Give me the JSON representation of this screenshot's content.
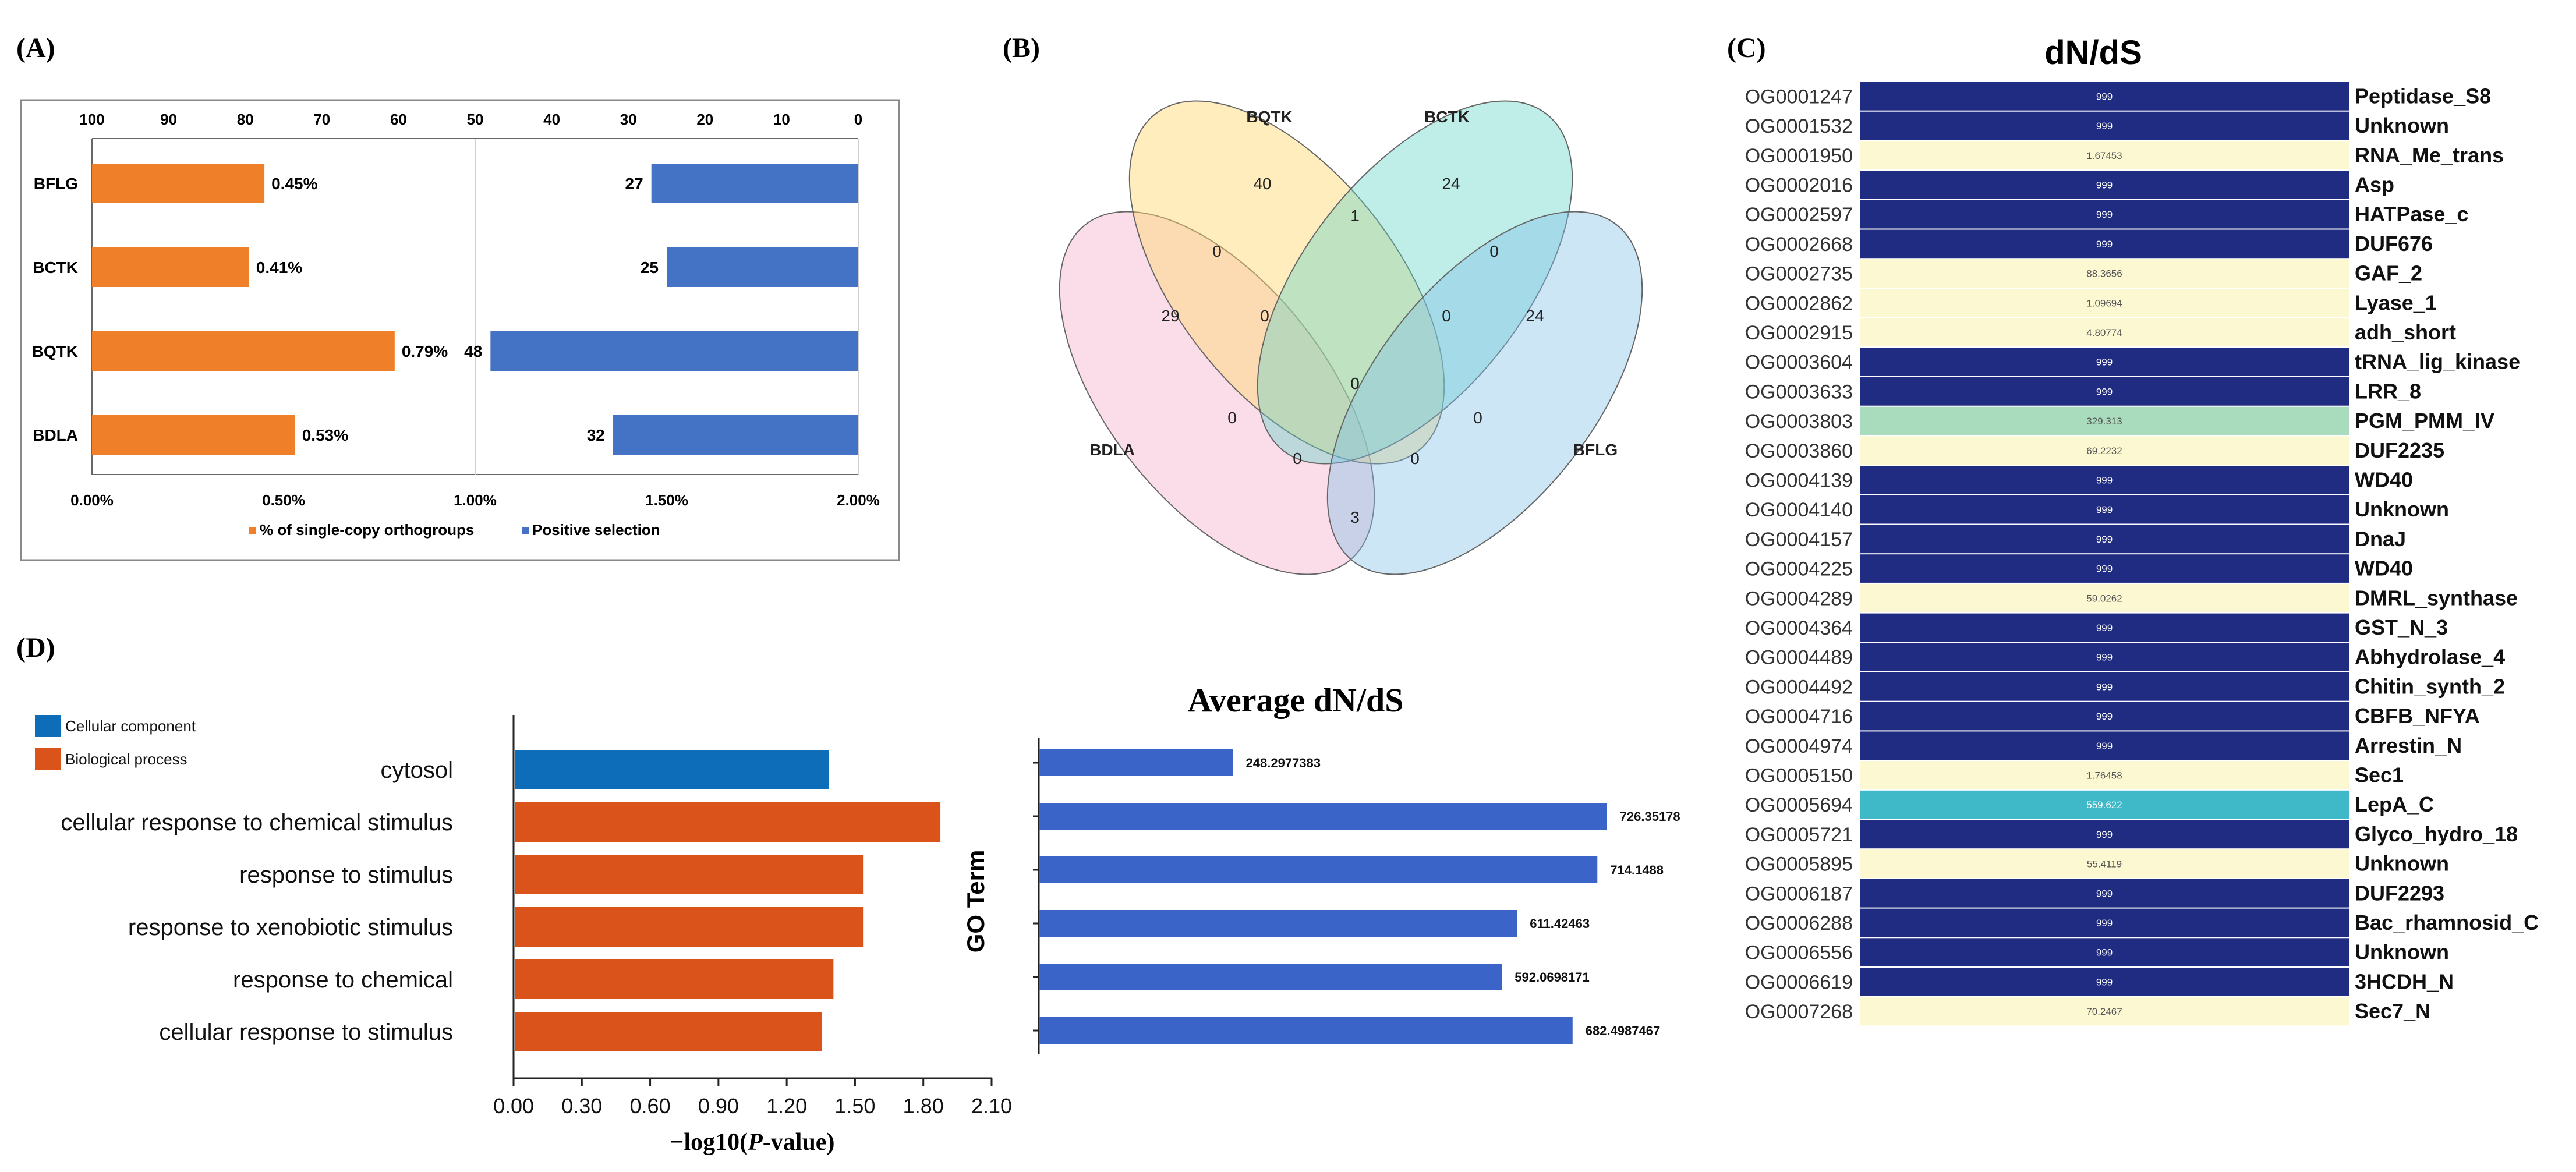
{
  "panels": {
    "a": "(A)",
    "b": "(B)",
    "c": "(C)",
    "d": "(D)"
  },
  "colors": {
    "orange": "#F07F2A",
    "blue": "#4472C4",
    "go_blue": "#0E6DB8",
    "go_orange": "#D9531B",
    "avg_bar": "#3B64C8",
    "hm_navy": "#1F2C82",
    "hm_cream": "#FBF8D2",
    "hm_green": "#A9DCBC",
    "hm_teal": "#3FB8C8"
  },
  "chart_data": [
    {
      "id": "A",
      "type": "bar",
      "orientation": "horizontal",
      "categories": [
        "BFLG",
        "BCTK",
        "BQTK",
        "BDLA"
      ],
      "series": [
        {
          "name": "% of single-copy orthogroups",
          "values": [
            0.45,
            0.41,
            0.79,
            0.53
          ],
          "labels": [
            "0.45%",
            "0.41%",
            "0.79%",
            "0.53%"
          ],
          "axis": "bottom"
        },
        {
          "name": "Positive selection",
          "values": [
            27,
            25,
            48,
            32
          ],
          "labels": [
            "27",
            "25",
            "48",
            "32"
          ],
          "axis": "top_reversed"
        }
      ],
      "bottom_axis": {
        "range": [
          0,
          2
        ],
        "ticks": [
          "0.00%",
          "0.50%",
          "1.00%",
          "1.50%",
          "2.00%"
        ]
      },
      "top_axis": {
        "range": [
          100,
          0
        ],
        "ticks": [
          "100",
          "90",
          "80",
          "70",
          "60",
          "50",
          "40",
          "30",
          "20",
          "10",
          "0"
        ]
      },
      "legend_position": "bottom"
    },
    {
      "id": "B",
      "type": "venn",
      "sets": [
        "BQTK",
        "BCTK",
        "BDLA",
        "BFLG"
      ],
      "region_counts": [
        {
          "sets": [
            "BQTK"
          ],
          "value": "40"
        },
        {
          "sets": [
            "BCTK"
          ],
          "value": "24"
        },
        {
          "sets": [
            "BDLA"
          ],
          "value": "29"
        },
        {
          "sets": [
            "BFLG"
          ],
          "value": "24"
        },
        {
          "sets": [
            "BQTK",
            "BCTK"
          ],
          "value": "1"
        },
        {
          "sets": [
            "BQTK",
            "BDLA"
          ],
          "value": "0"
        },
        {
          "sets": [
            "BCTK",
            "BFLG"
          ],
          "value": "0"
        },
        {
          "sets": [
            "BQTK",
            "BCTK",
            "BDLA"
          ],
          "value": "0"
        },
        {
          "sets": [
            "BQTK",
            "BCTK",
            "BFLG"
          ],
          "value": "0"
        },
        {
          "sets": [
            "BQTK",
            "BCTK",
            "BDLA",
            "BFLG"
          ],
          "value": "0"
        },
        {
          "sets": [
            "BDLA",
            "BCTK"
          ],
          "value": "0"
        },
        {
          "sets": [
            "BQTK",
            "BFLG"
          ],
          "value": "0"
        },
        {
          "sets": [
            "BDLA",
            "BCTK",
            "BFLG"
          ],
          "value": "0"
        },
        {
          "sets": [
            "BDLA",
            "BQTK",
            "BFLG"
          ],
          "value": "0"
        },
        {
          "sets": [
            "BDLA",
            "BFLG"
          ],
          "value": "3"
        }
      ]
    },
    {
      "id": "C",
      "type": "heatmap",
      "title": "dN/dS",
      "rows": [
        {
          "og": "OG0001247",
          "value": "999",
          "family": "Peptidase_S8",
          "level": "navy"
        },
        {
          "og": "OG0001532",
          "value": "999",
          "family": "Unknown",
          "level": "navy"
        },
        {
          "og": "OG0001950",
          "value": "1.67453",
          "family": "RNA_Me_trans",
          "level": "cream"
        },
        {
          "og": "OG0002016",
          "value": "999",
          "family": "Asp",
          "level": "navy"
        },
        {
          "og": "OG0002597",
          "value": "999",
          "family": "HATPase_c",
          "level": "navy"
        },
        {
          "og": "OG0002668",
          "value": "999",
          "family": "DUF676",
          "level": "navy"
        },
        {
          "og": "OG0002735",
          "value": "88.3656",
          "family": "GAF_2",
          "level": "cream"
        },
        {
          "og": "OG0002862",
          "value": "1.09694",
          "family": "Lyase_1",
          "level": "cream"
        },
        {
          "og": "OG0002915",
          "value": "4.80774",
          "family": "adh_short",
          "level": "cream"
        },
        {
          "og": "OG0003604",
          "value": "999",
          "family": "tRNA_lig_kinase",
          "level": "navy"
        },
        {
          "og": "OG0003633",
          "value": "999",
          "family": "LRR_8",
          "level": "navy"
        },
        {
          "og": "OG0003803",
          "value": "329.313",
          "family": "PGM_PMM_IV",
          "level": "green"
        },
        {
          "og": "OG0003860",
          "value": "69.2232",
          "family": "DUF2235",
          "level": "cream"
        },
        {
          "og": "OG0004139",
          "value": "999",
          "family": "WD40",
          "level": "navy"
        },
        {
          "og": "OG0004140",
          "value": "999",
          "family": "Unknown",
          "level": "navy"
        },
        {
          "og": "OG0004157",
          "value": "999",
          "family": "DnaJ",
          "level": "navy"
        },
        {
          "og": "OG0004225",
          "value": "999",
          "family": "WD40",
          "level": "navy"
        },
        {
          "og": "OG0004289",
          "value": "59.0262",
          "family": "DMRL_synthase",
          "level": "cream"
        },
        {
          "og": "OG0004364",
          "value": "999",
          "family": "GST_N_3",
          "level": "navy"
        },
        {
          "og": "OG0004489",
          "value": "999",
          "family": "Abhydrolase_4",
          "level": "navy"
        },
        {
          "og": "OG0004492",
          "value": "999",
          "family": "Chitin_synth_2",
          "level": "navy"
        },
        {
          "og": "OG0004716",
          "value": "999",
          "family": "CBFB_NFYA",
          "level": "navy"
        },
        {
          "og": "OG0004974",
          "value": "999",
          "family": "Arrestin_N",
          "level": "navy"
        },
        {
          "og": "OG0005150",
          "value": "1.76458",
          "family": "Sec1",
          "level": "cream"
        },
        {
          "og": "OG0005694",
          "value": "559.622",
          "family": "LepA_C",
          "level": "teal"
        },
        {
          "og": "OG0005721",
          "value": "999",
          "family": "Glyco_hydro_18",
          "level": "navy"
        },
        {
          "og": "OG0005895",
          "value": "55.4119",
          "family": "Unknown",
          "level": "cream"
        },
        {
          "og": "OG0006187",
          "value": "999",
          "family": "DUF2293",
          "level": "navy"
        },
        {
          "og": "OG0006288",
          "value": "999",
          "family": "Bac_rhamnosid_C",
          "level": "navy"
        },
        {
          "og": "OG0006556",
          "value": "999",
          "family": "Unknown",
          "level": "navy"
        },
        {
          "og": "OG0006619",
          "value": "999",
          "family": "3HCDH_N",
          "level": "navy"
        },
        {
          "og": "OG0007268",
          "value": "70.2467",
          "family": "Sec7_N",
          "level": "cream"
        }
      ]
    },
    {
      "id": "D_go",
      "type": "bar",
      "orientation": "horizontal",
      "categories": [
        "cytosol",
        "cellular response to chemical stimulus",
        "response to stimulus",
        "response to xenobiotic stimulus",
        "response to chemical",
        "cellular response to stimulus"
      ],
      "values": [
        1.38,
        1.87,
        1.53,
        1.53,
        1.4,
        1.35
      ],
      "groups": [
        "Cellular component",
        "Biological process",
        "Biological process",
        "Biological process",
        "Biological process",
        "Biological process"
      ],
      "legend": [
        "Cellular component",
        "Biological process"
      ],
      "legend_position": "top-left",
      "xlabel_prefix": "−log10(",
      "xlabel_italic": "P",
      "xlabel_suffix": "-value)",
      "xlim": [
        0,
        2.1
      ],
      "xticks": [
        "0.00",
        "0.30",
        "0.60",
        "0.90",
        "1.20",
        "1.50",
        "1.80",
        "2.10"
      ]
    },
    {
      "id": "D_avg",
      "type": "bar",
      "orientation": "horizontal",
      "title": "Average dN/dS",
      "ylabel": "GO Term",
      "values": [
        248.2977383,
        726.35178,
        714.1488,
        611.42463,
        592.0698171,
        682.4987467
      ],
      "labels": [
        "248.2977383",
        "726.35178",
        "714.1488",
        "611.42463",
        "592.0698171",
        "682.4987467"
      ],
      "xlim": [
        0,
        740
      ]
    }
  ]
}
